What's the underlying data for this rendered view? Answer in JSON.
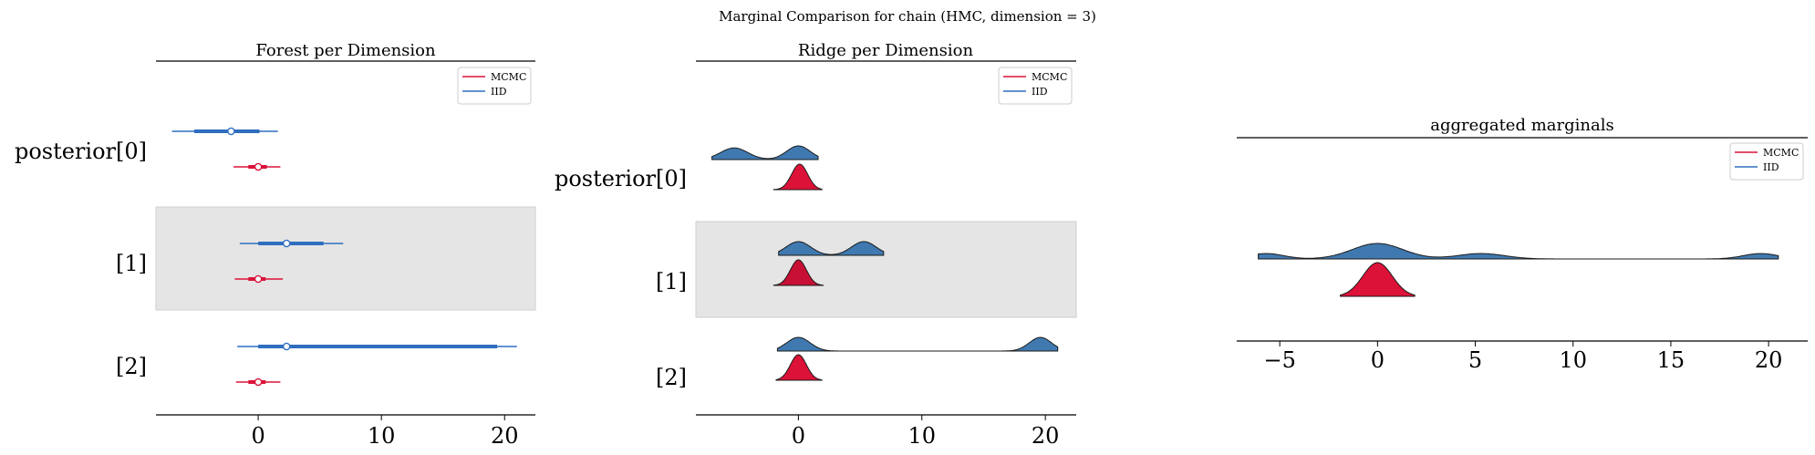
{
  "figure": {
    "title": "Marginal Comparison for chain (HMC, dimension = 3)"
  },
  "legend": {
    "entries": [
      {
        "label": "MCMC",
        "color": "#dc1238"
      },
      {
        "label": "IID",
        "color": "#2f6ebf"
      }
    ]
  },
  "colors": {
    "mcmc": "#dc1238",
    "mcmc_dark": "#c81035",
    "iid": "#4079b0",
    "iid_line": "#2f6ebf",
    "band": "#e5e5e5"
  },
  "chart_data": [
    {
      "type": "forest",
      "title": "Forest per Dimension",
      "row_labels": [
        "posterior[0]",
        "[1]",
        "[2]"
      ],
      "xlim": [
        -8.3,
        22.5
      ],
      "xticks": [
        0,
        10,
        20
      ],
      "shaded_rows": [
        1
      ],
      "rows": [
        {
          "iid": {
            "hdi94": [
              -7,
              1.6
            ],
            "hdi50": [
              -5.2,
              0.1
            ],
            "median": -2.2
          },
          "mcmc": {
            "hdi94": [
              -2,
              1.8
            ],
            "hdi50": [
              -0.8,
              0.7
            ],
            "median": 0.0
          }
        },
        {
          "iid": {
            "hdi94": [
              -1.5,
              6.9
            ],
            "hdi50": [
              0,
              5.3
            ],
            "median": 2.3
          },
          "mcmc": {
            "hdi94": [
              -1.9,
              2
            ],
            "hdi50": [
              -0.8,
              0.6
            ],
            "median": 0.0
          }
        },
        {
          "iid": {
            "hdi94": [
              -1.7,
              21
            ],
            "hdi50": [
              0,
              19.4
            ],
            "median": 2.3
          },
          "mcmc": {
            "hdi94": [
              -1.8,
              1.8
            ],
            "hdi50": [
              -0.8,
              0.6
            ],
            "median": 0.0
          }
        }
      ]
    },
    {
      "type": "ridge",
      "title": "Ridge per Dimension",
      "row_labels": [
        "posterior[0]",
        "[1]",
        "[2]"
      ],
      "xlim": [
        -8.3,
        22.5
      ],
      "xticks": [
        0,
        10,
        20
      ],
      "shaded_rows": [
        1
      ],
      "rows": [
        {
          "iid": {
            "range": [
              -7,
              1.6
            ],
            "modes": [
              {
                "mu": -5.2,
                "sigma": 1.1,
                "w": 0.85
              },
              {
                "mu": 0,
                "sigma": 0.95,
                "w": 1.0
              }
            ]
          },
          "mcmc": {
            "range": [
              -2,
              1.9
            ],
            "modes": [
              {
                "mu": 0.1,
                "sigma": 0.65,
                "w": 1.0
              }
            ]
          }
        },
        {
          "iid": {
            "range": [
              -1.6,
              6.9
            ],
            "modes": [
              {
                "mu": 0,
                "sigma": 1.0,
                "w": 1.0
              },
              {
                "mu": 5.3,
                "sigma": 1.0,
                "w": 1.0
              }
            ]
          },
          "mcmc": {
            "range": [
              -2,
              2.0
            ],
            "modes": [
              {
                "mu": 0,
                "sigma": 0.65,
                "w": 1.0
              }
            ]
          }
        },
        {
          "iid": {
            "range": [
              -1.7,
              21
            ],
            "modes": [
              {
                "mu": 0,
                "sigma": 0.95,
                "w": 1.0
              },
              {
                "mu": 19.6,
                "sigma": 0.9,
                "w": 1.0
              }
            ]
          },
          "mcmc": {
            "range": [
              -1.8,
              1.9
            ],
            "modes": [
              {
                "mu": 0,
                "sigma": 0.65,
                "w": 1.0
              }
            ]
          }
        }
      ]
    },
    {
      "type": "ridge",
      "title": "aggregated marginals",
      "xlim": [
        -7.2,
        22.0
      ],
      "xticks": [
        -5,
        0,
        5,
        10,
        15,
        20
      ],
      "tick_labels": [
        "−5",
        "0",
        "5",
        "10",
        "15",
        "20"
      ],
      "series": [
        {
          "name": "IID",
          "range": [
            -6.1,
            20.5
          ],
          "modes": [
            {
              "mu": -5.7,
              "sigma": 0.9,
              "w": 0.35
            },
            {
              "mu": 0,
              "sigma": 1.3,
              "w": 1.0
            },
            {
              "mu": 5.3,
              "sigma": 1.2,
              "w": 0.35
            },
            {
              "mu": 19.6,
              "sigma": 0.9,
              "w": 0.35
            }
          ]
        },
        {
          "name": "MCMC",
          "range": [
            -1.9,
            1.9
          ],
          "modes": [
            {
              "mu": 0,
              "sigma": 0.75,
              "w": 1.0
            }
          ]
        }
      ]
    }
  ]
}
